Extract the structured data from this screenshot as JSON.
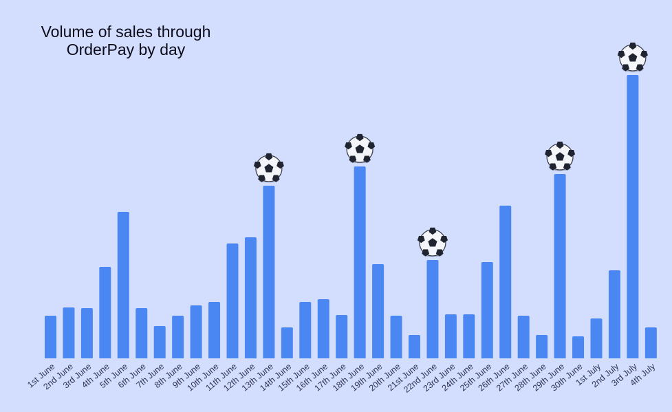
{
  "chart_data": {
    "type": "bar",
    "title": "Volume of sales through OrderPay by day",
    "xlabel": "",
    "ylabel": "",
    "ylim": [
      0,
      412
    ],
    "categories": [
      "1st June",
      "2nd June",
      "3rd June",
      "4th June",
      "5th June",
      "6th June",
      "7th June",
      "8th June",
      "9th June",
      "10th June",
      "11th June",
      "12th June",
      "13th June",
      "14th June",
      "15th June",
      "16th June",
      "17th June",
      "18th June",
      "19th June",
      "20th June",
      "21st June",
      "22nd June",
      "23rd June",
      "24th June",
      "25th June",
      "26th June",
      "27th June",
      "28th June",
      "29th June",
      "30th June",
      "1st July",
      "2nd July",
      "3rd July",
      "4th July"
    ],
    "values": [
      62,
      74,
      73,
      133,
      213,
      73,
      47,
      62,
      77,
      82,
      167,
      176,
      251,
      45,
      82,
      86,
      63,
      279,
      137,
      62,
      34,
      143,
      64,
      64,
      140,
      222,
      62,
      34,
      268,
      32,
      58,
      128,
      412,
      45
    ],
    "highlighted_categories": [
      "13th June",
      "18th June",
      "22nd June",
      "29th June",
      "3rd July"
    ],
    "highlight_icon": "soccer-ball-icon",
    "grid": false,
    "legend": "none",
    "colors": {
      "bar": "#4b87f3",
      "background": "#d3ddfe",
      "text": "#0b0b1a"
    }
  }
}
